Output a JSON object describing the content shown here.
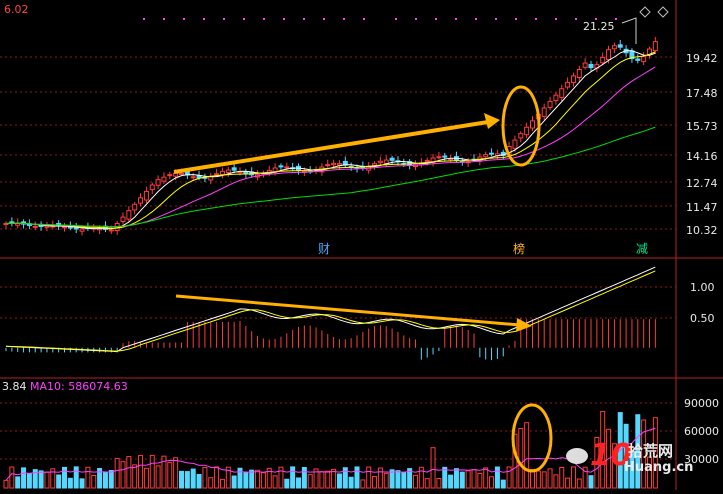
{
  "header": {
    "top_left_value": "6.02",
    "peak_label": "21.25"
  },
  "markers": [
    {
      "text": "财",
      "color": "#4aa8ff"
    },
    {
      "text": "榜",
      "color": "#ffb020"
    },
    {
      "text": "减",
      "color": "#00e68a"
    }
  ],
  "volume_header": {
    "value_prefix": "3.84",
    "ma10_label": "MA10: 586074.63"
  },
  "watermark": {
    "logo_text": "10",
    "site_text": "拾荒网",
    "domain_text": "Huang.cn"
  },
  "colors": {
    "up": "#ff3b3b",
    "down": "#54d8ff",
    "ma5": "#ffffff",
    "ma10": "#ffff00",
    "ma20": "#ff40ff",
    "ma60": "#00dd00",
    "arrow": "#ffb000",
    "grid": "#8b1a1a"
  },
  "chart_data": [
    {
      "type": "candlestick",
      "title": "",
      "y_ticks": [
        "19.42",
        "17.48",
        "15.73",
        "14.16",
        "12.74",
        "11.47",
        "10.32"
      ],
      "ylim": [
        9.6,
        21.6
      ],
      "grid": true,
      "overlays": [
        "ma5",
        "ma10",
        "ma20",
        "ma60"
      ],
      "annotations": [
        "uptrend arrow over consolidation",
        "circled breakout gap"
      ]
    },
    {
      "type": "line",
      "title": "",
      "y_ticks": [
        "1.00",
        "0.50"
      ],
      "ylim": [
        -0.15,
        1.25
      ],
      "series_lines": 2,
      "histogram": true,
      "annotations": [
        "falling arrow over indicator peaks"
      ]
    },
    {
      "type": "bar",
      "title": "",
      "y_ticks": [
        "90000",
        "60000",
        "30000"
      ],
      "ylim": [
        0,
        100000
      ],
      "annotations": [
        "circled volume surge"
      ]
    }
  ]
}
